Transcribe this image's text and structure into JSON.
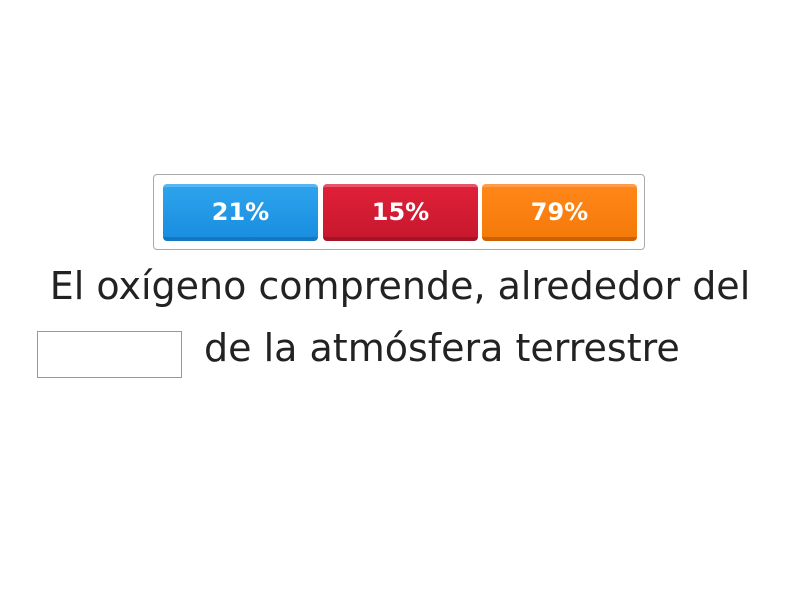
{
  "options": [
    {
      "label": "21%",
      "color": "#2196e8"
    },
    {
      "label": "15%",
      "color": "#d91c33"
    },
    {
      "label": "79%",
      "color": "#fb800f"
    }
  ],
  "sentence": {
    "line1": "El oxígeno comprende, alrededor del",
    "line2": "de la atmósfera terrestre",
    "blank_value": ""
  }
}
